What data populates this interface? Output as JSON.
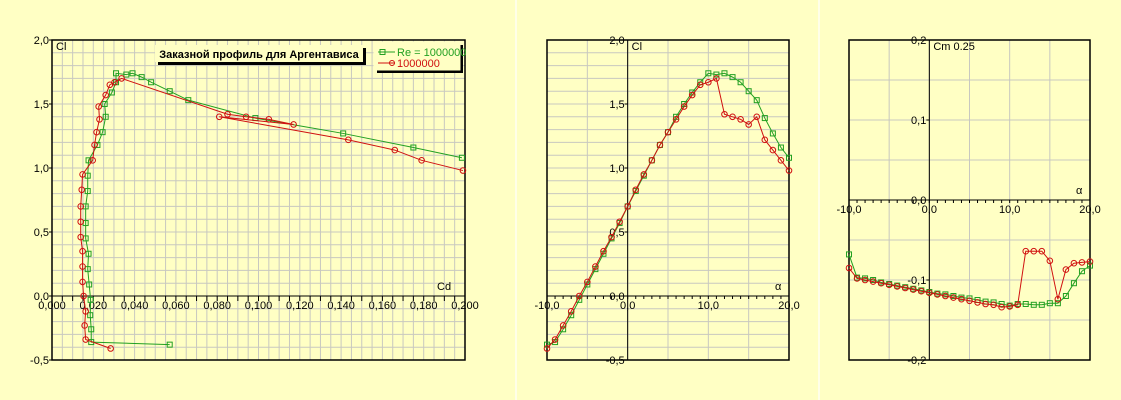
{
  "colors": {
    "background": "#FFFFC4",
    "grid": "#C8C8C0",
    "series_green": "#22A022",
    "series_red": "#D01010"
  },
  "chart_data": [
    {
      "type": "line",
      "title": "Заказной профиль для Аргентависа",
      "xlabel": "Cd",
      "ylabel": "Cl",
      "xlim": [
        0,
        0.2
      ],
      "ylim": [
        -0.5,
        2.0
      ],
      "xticks": [
        "0,000",
        "0,020",
        "0,040",
        "0,060",
        "0,080",
        "0,100",
        "0,120",
        "0,140",
        "0,160",
        "0,180",
        "0,200"
      ],
      "yticks": [
        "-0,5",
        "0,0",
        "0,5",
        "1,0",
        "1,5",
        "2,0"
      ],
      "legend": [
        "Re = 1000000",
        "1000000"
      ],
      "legend_position": "top-right",
      "grid": true,
      "series": [
        {
          "name": "Re = 1000000",
          "color": "#22A022",
          "x": [
            0.057,
            0.019,
            0.019,
            0.0185,
            0.0187,
            0.018,
            0.0173,
            0.0177,
            0.0163,
            0.0163,
            0.0163,
            0.0173,
            0.0173,
            0.0177,
            0.022,
            0.0245,
            0.026,
            0.0255,
            0.029,
            0.031,
            0.031,
            0.036,
            0.039,
            0.0434,
            0.048,
            0.057,
            0.066,
            0.0985,
            0.141,
            0.175,
            0.1985
          ],
          "y": [
            -0.38,
            -0.36,
            -0.26,
            -0.15,
            -0.03,
            0.09,
            0.21,
            0.33,
            0.45,
            0.57,
            0.7,
            0.82,
            0.94,
            1.06,
            1.18,
            1.28,
            1.4,
            1.5,
            1.59,
            1.67,
            1.74,
            1.73,
            1.74,
            1.71,
            1.67,
            1.6,
            1.53,
            1.39,
            1.27,
            1.16,
            1.08
          ]
        },
        {
          "name": "1000000",
          "color": "#D01010",
          "x": [
            0.0284,
            0.0163,
            0.0158,
            0.0163,
            0.0153,
            0.0148,
            0.0148,
            0.0148,
            0.0139,
            0.0139,
            0.0139,
            0.0144,
            0.0148,
            0.0197,
            0.0206,
            0.0216,
            0.023,
            0.0226,
            0.026,
            0.028,
            0.0303,
            0.0337,
            0.085,
            0.094,
            0.105,
            0.117,
            0.081,
            0.1435,
            0.166,
            0.179,
            0.199
          ],
          "y": [
            -0.41,
            -0.34,
            -0.23,
            -0.12,
            0.0,
            0.11,
            0.23,
            0.35,
            0.46,
            0.58,
            0.7,
            0.83,
            0.95,
            1.06,
            1.18,
            1.28,
            1.38,
            1.48,
            1.57,
            1.65,
            1.67,
            1.7,
            1.42,
            1.4,
            1.38,
            1.34,
            1.4,
            1.22,
            1.14,
            1.06,
            0.98
          ]
        }
      ]
    },
    {
      "type": "line",
      "xlabel": "α",
      "ylabel": "Cl",
      "xlim": [
        -10,
        20
      ],
      "ylim": [
        -0.5,
        2.0
      ],
      "xticks": [
        "-10,0",
        "0,0",
        "10,0",
        "20,0"
      ],
      "yticks": [
        "-0,5",
        "0,0",
        "0,5",
        "1,0",
        "1,5",
        "2,0"
      ],
      "grid": true,
      "x": [
        -10,
        -9,
        -8,
        -7,
        -6,
        -5,
        -4,
        -3,
        -2,
        -1,
        0,
        1,
        2,
        3,
        4,
        5,
        6,
        7,
        8,
        9,
        10,
        11,
        12,
        13,
        14,
        15,
        16,
        17,
        18,
        19,
        20
      ],
      "series": [
        {
          "name": "Re = 1000000",
          "color": "#22A022",
          "values": [
            -0.38,
            -0.36,
            -0.26,
            -0.15,
            -0.03,
            0.09,
            0.21,
            0.33,
            0.45,
            0.57,
            0.7,
            0.82,
            0.94,
            1.06,
            1.18,
            1.28,
            1.4,
            1.5,
            1.59,
            1.67,
            1.74,
            1.73,
            1.74,
            1.71,
            1.67,
            1.6,
            1.53,
            1.39,
            1.27,
            1.16,
            1.08
          ]
        },
        {
          "name": "1000000",
          "color": "#D01010",
          "values": [
            -0.41,
            -0.34,
            -0.23,
            -0.12,
            0.0,
            0.11,
            0.23,
            0.35,
            0.46,
            0.58,
            0.7,
            0.83,
            0.95,
            1.06,
            1.18,
            1.28,
            1.38,
            1.48,
            1.57,
            1.65,
            1.67,
            1.7,
            1.42,
            1.4,
            1.38,
            1.34,
            1.4,
            1.22,
            1.14,
            1.06,
            0.98
          ]
        }
      ]
    },
    {
      "type": "line",
      "xlabel": "α",
      "ylabel": "Cm 0.25",
      "xlim": [
        -10,
        20
      ],
      "ylim": [
        -0.2,
        0.2
      ],
      "xticks": [
        "-10,0",
        "0,0",
        "10,0",
        "20,0"
      ],
      "yticks": [
        "-0,2",
        "-0,1",
        "0,0",
        "0,1",
        "0,2"
      ],
      "grid": true,
      "x": [
        -10,
        -9,
        -8,
        -7,
        -6,
        -5,
        -4,
        -3,
        -2,
        -1,
        0,
        1,
        2,
        3,
        4,
        5,
        6,
        7,
        8,
        9,
        10,
        11,
        12,
        13,
        14,
        15,
        16,
        17,
        18,
        19,
        20
      ],
      "series": [
        {
          "name": "Re = 1000000",
          "color": "#22A022",
          "values": [
            -0.068,
            -0.097,
            -0.098,
            -0.1,
            -0.103,
            -0.105,
            -0.107,
            -0.109,
            -0.111,
            -0.113,
            -0.115,
            -0.117,
            -0.118,
            -0.12,
            -0.122,
            -0.123,
            -0.125,
            -0.127,
            -0.128,
            -0.13,
            -0.132,
            -0.13,
            -0.13,
            -0.131,
            -0.131,
            -0.129,
            -0.129,
            -0.12,
            -0.104,
            -0.089,
            -0.082
          ]
        },
        {
          "name": "1000000",
          "color": "#D01010",
          "values": [
            -0.085,
            -0.098,
            -0.1,
            -0.102,
            -0.104,
            -0.106,
            -0.108,
            -0.11,
            -0.112,
            -0.114,
            -0.116,
            -0.118,
            -0.12,
            -0.122,
            -0.124,
            -0.126,
            -0.128,
            -0.13,
            -0.131,
            -0.134,
            -0.133,
            -0.131,
            -0.064,
            -0.064,
            -0.064,
            -0.076,
            -0.124,
            -0.087,
            -0.079,
            -0.078,
            -0.077
          ]
        }
      ]
    }
  ]
}
